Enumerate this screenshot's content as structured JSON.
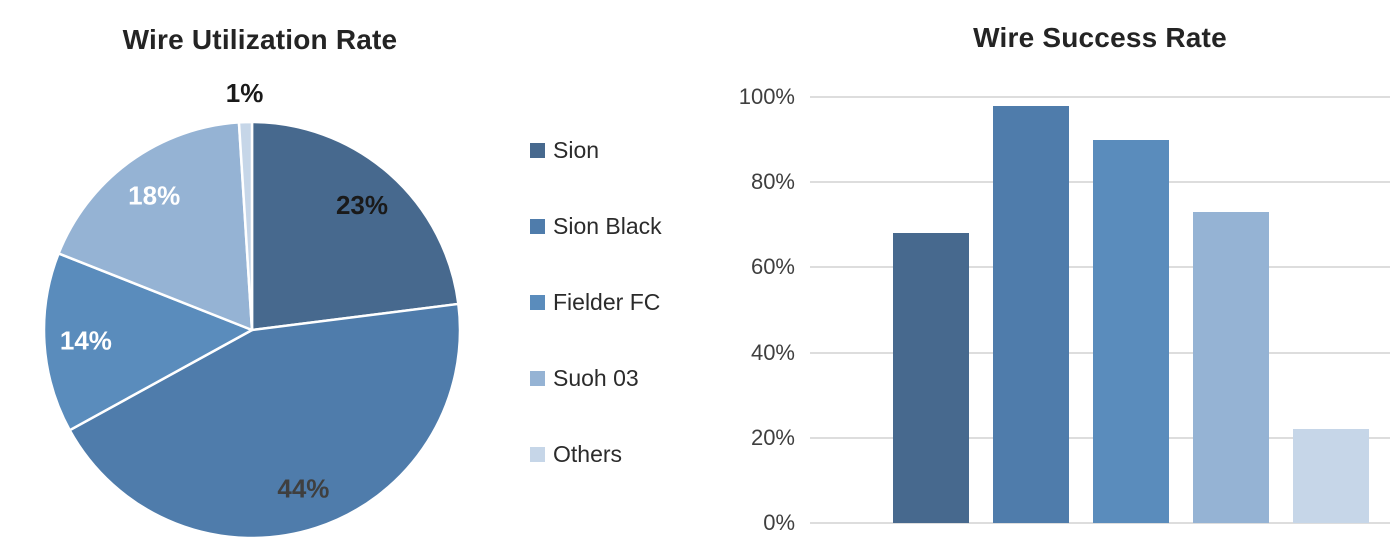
{
  "palette": {
    "sion": "#47698e",
    "sion_black": "#4f7cab",
    "fielder_fc": "#5a8cbc",
    "suoh_03": "#95b3d4",
    "others": "#c6d6e8",
    "gridline": "#dddddd",
    "title_text": "#242424",
    "tick_text": "#3f3f3f"
  },
  "legend": {
    "items": [
      {
        "label": "Sion",
        "color": "#47698e"
      },
      {
        "label": "Sion Black",
        "color": "#4f7cab"
      },
      {
        "label": "Fielder FC",
        "color": "#5a8cbc"
      },
      {
        "label": "Suoh 03",
        "color": "#95b3d4"
      },
      {
        "label": "Others",
        "color": "#c6d6e8"
      }
    ]
  },
  "chart_data": [
    {
      "type": "pie",
      "title": "Wire Utilization Rate",
      "categories": [
        "Sion",
        "Sion Black",
        "Fielder FC",
        "Suoh 03",
        "Others"
      ],
      "values": [
        23,
        44,
        14,
        18,
        1
      ],
      "data_labels": [
        "23%",
        "44%",
        "14%",
        "18%",
        "1%"
      ],
      "colors": [
        "#47698e",
        "#4f7cab",
        "#5a8cbc",
        "#95b3d4",
        "#c6d6e8"
      ],
      "label_colors": [
        "#1a1a1a",
        "#3f3f3f",
        "#ffffff",
        "#ffffff",
        "#1a1a1a"
      ],
      "start_angle_deg": 0,
      "direction": "clockwise",
      "slice_border_color": "#ffffff",
      "legend_position": "right"
    },
    {
      "type": "bar",
      "title": "Wire Success Rate",
      "categories": [
        "Sion",
        "Sion Black",
        "Fielder FC",
        "Suoh 03",
        "Others"
      ],
      "values": [
        68,
        98,
        90,
        73,
        22
      ],
      "colors": [
        "#47698e",
        "#4f7cab",
        "#5a8cbc",
        "#95b3d4",
        "#c6d6e8"
      ],
      "yticks": [
        "0%",
        "20%",
        "40%",
        "60%",
        "80%",
        "100%"
      ],
      "ylim": [
        0,
        100
      ],
      "grid": "horizontal",
      "xlabel": "",
      "ylabel": "",
      "x_axis_labels_visible": false
    }
  ]
}
